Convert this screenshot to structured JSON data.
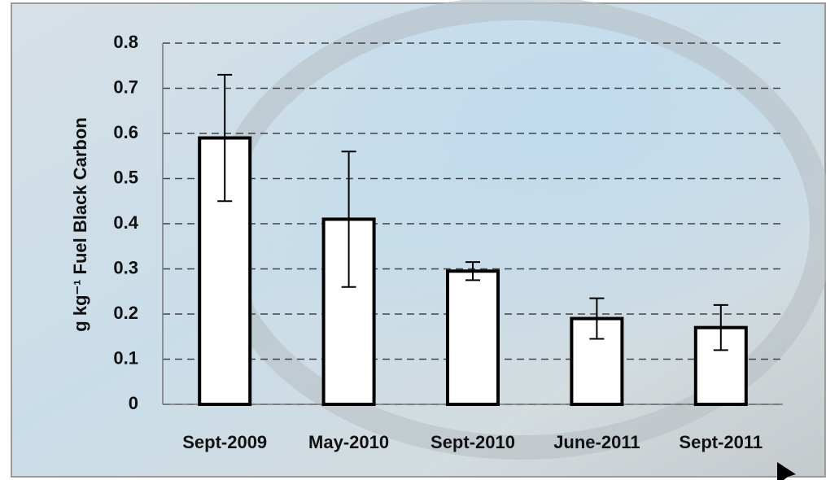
{
  "chart_data": {
    "type": "bar",
    "y_label": "g kg⁻¹ Fuel Black Carbon",
    "categories": [
      "Sept-2009",
      "May-2010",
      "Sept-2010",
      "June-2011",
      "Sept-2011"
    ],
    "values": [
      0.59,
      0.41,
      0.295,
      0.19,
      0.17
    ],
    "errors": [
      0.14,
      0.15,
      0.02,
      0.045,
      0.05
    ],
    "color": "#ffffff",
    "ylim": [
      0,
      0.8
    ],
    "yticks": [
      0,
      0.1,
      0.2,
      0.3,
      0.4,
      0.5,
      0.6,
      0.7,
      0.8
    ],
    "grid": true
  }
}
